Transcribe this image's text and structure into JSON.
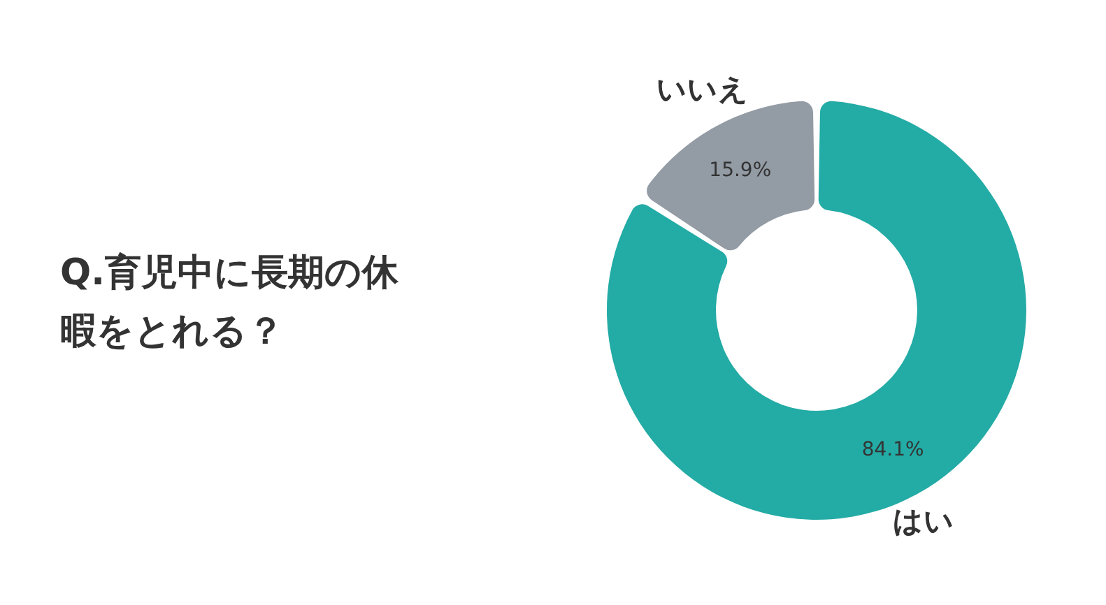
{
  "chart_data": {
    "type": "donut",
    "title": "Q.育児中に長期の休暇をとれる？",
    "categories": [
      "はい",
      "いいえ"
    ],
    "values": [
      84.1,
      15.9
    ],
    "colors": [
      "#23aba5",
      "#939ba5"
    ],
    "value_labels": [
      "84.1%",
      "15.9%"
    ],
    "legend": false
  }
}
